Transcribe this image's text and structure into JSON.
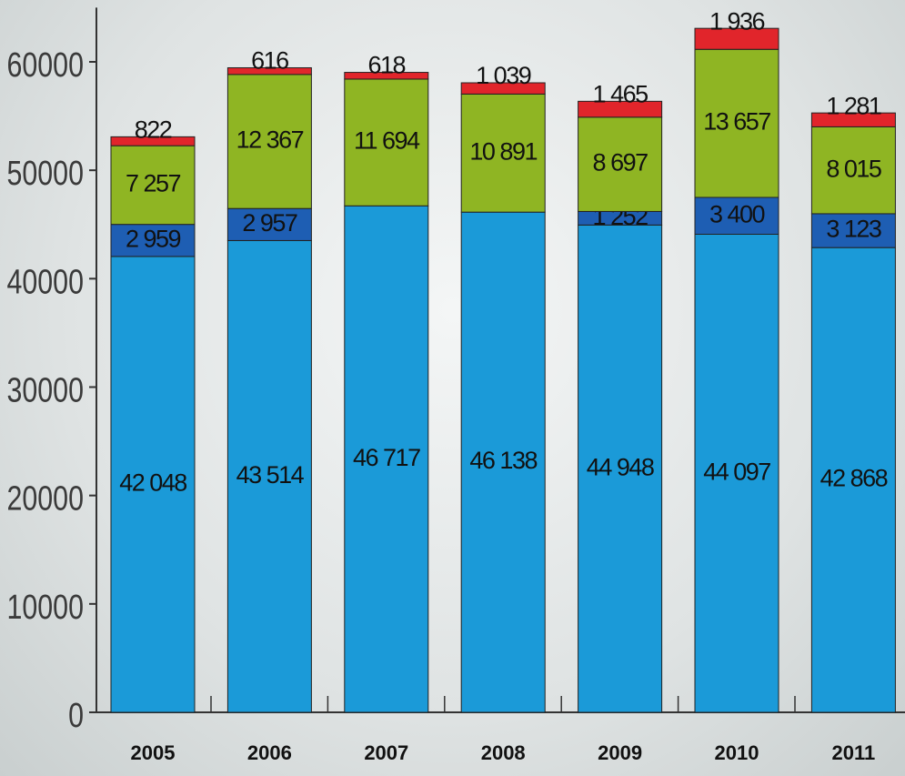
{
  "chart_data": {
    "type": "stacked-bar",
    "categories": [
      "2005",
      "2006",
      "2007",
      "2008",
      "2009",
      "2010",
      "2011"
    ],
    "series": [
      {
        "color": "#1b9ad8",
        "values": [
          42048,
          43514,
          46717,
          46138,
          44948,
          44097,
          42868
        ],
        "value_labels": [
          "42 048",
          "43 514",
          "46 717",
          "46 138",
          "44 948",
          "44 097",
          "42 868"
        ]
      },
      {
        "color": "#1e5eb3",
        "values": [
          2959,
          2957,
          null,
          null,
          1252,
          3400,
          3123
        ],
        "value_labels": [
          "2 959",
          "2 957",
          null,
          null,
          "1 252",
          "3 400",
          "3 123"
        ]
      },
      {
        "color": "#8fb523",
        "values": [
          7257,
          12367,
          11694,
          10891,
          8697,
          13657,
          8015
        ],
        "value_labels": [
          "7 257",
          "12 367",
          "11 694",
          "10 891",
          "8 697",
          "13 657",
          "8 015"
        ]
      },
      {
        "color": "#e1252b",
        "values": [
          822,
          616,
          618,
          1039,
          1465,
          1936,
          1281
        ],
        "value_labels": [
          "822",
          "616",
          "618",
          "1 039",
          "1 465",
          "1 936",
          "1 281"
        ]
      }
    ],
    "ylim": [
      0,
      65000
    ],
    "yticks": [
      0,
      10000,
      20000,
      30000,
      40000,
      50000,
      60000
    ]
  }
}
